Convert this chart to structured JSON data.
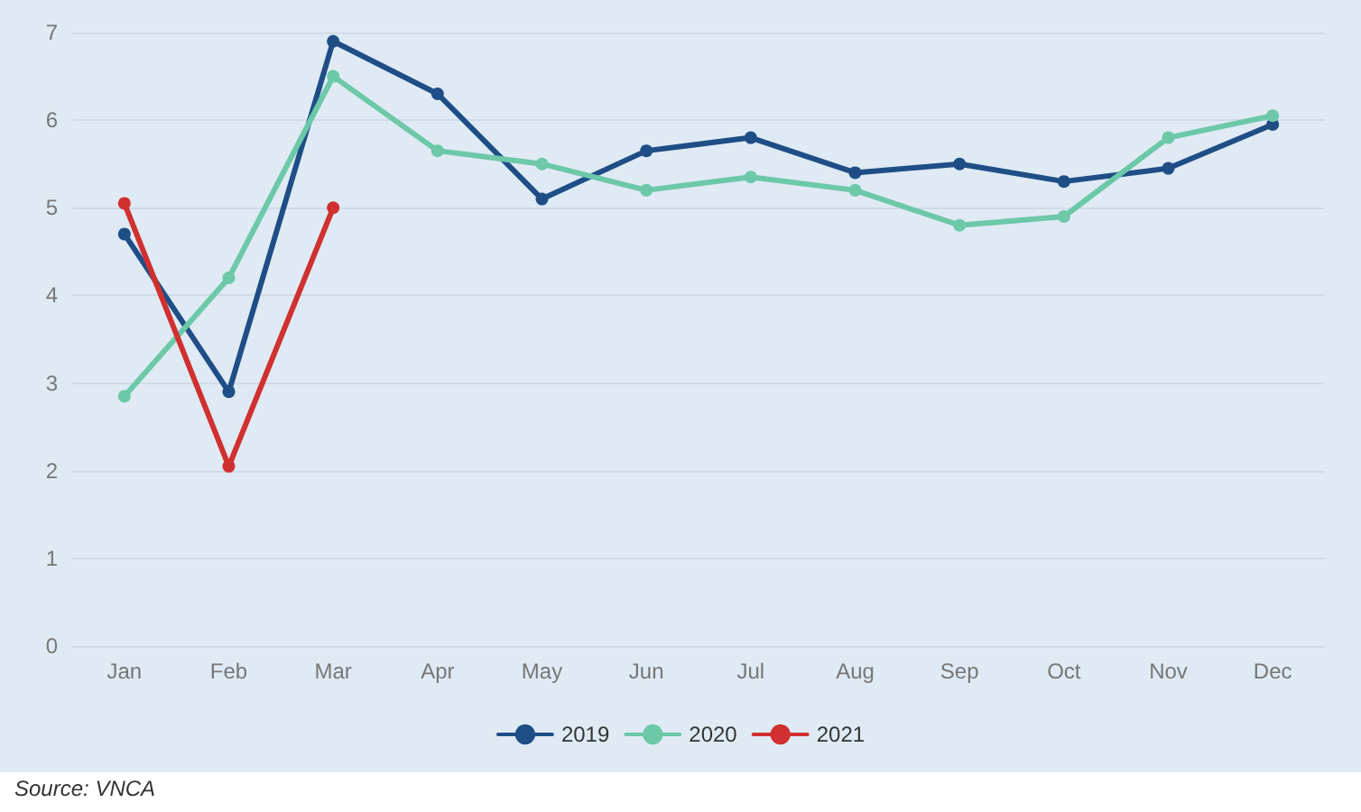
{
  "chart_data": {
    "type": "line",
    "categories": [
      "Jan",
      "Feb",
      "Mar",
      "Apr",
      "May",
      "Jun",
      "Jul",
      "Aug",
      "Sep",
      "Oct",
      "Nov",
      "Dec"
    ],
    "series": [
      {
        "name": "2019",
        "color": "#1f4e86",
        "values": [
          4.7,
          2.9,
          6.9,
          6.3,
          5.1,
          5.65,
          5.8,
          5.4,
          5.5,
          5.3,
          5.45,
          5.95
        ]
      },
      {
        "name": "2020",
        "color": "#6cc8a8",
        "values": [
          2.85,
          4.2,
          6.5,
          5.65,
          5.5,
          5.2,
          5.35,
          5.2,
          4.8,
          4.9,
          5.8,
          6.05
        ]
      },
      {
        "name": "2021",
        "color": "#d03030",
        "values": [
          5.05,
          2.05,
          5.0,
          null,
          null,
          null,
          null,
          null,
          null,
          null,
          null,
          null
        ]
      }
    ],
    "ylim": [
      0,
      7
    ],
    "yticks": [
      0,
      1,
      2,
      3,
      4,
      5,
      6,
      7
    ],
    "grid": "y",
    "legend": "bottom",
    "marker": "circle",
    "line_style": "solid",
    "annotations": [
      "Source: VNCA"
    ]
  }
}
